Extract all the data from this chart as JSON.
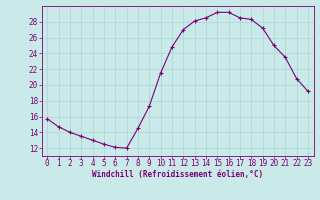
{
  "x": [
    0,
    1,
    2,
    3,
    4,
    5,
    6,
    7,
    8,
    9,
    10,
    11,
    12,
    13,
    14,
    15,
    16,
    17,
    18,
    19,
    20,
    21,
    22,
    23
  ],
  "y": [
    15.7,
    14.7,
    14.0,
    13.5,
    13.0,
    12.5,
    12.1,
    12.0,
    14.5,
    17.3,
    21.5,
    24.8,
    27.0,
    28.1,
    28.5,
    29.2,
    29.2,
    28.5,
    28.3,
    27.2,
    25.0,
    23.5,
    20.8,
    19.2
  ],
  "line_color": "#7B0077",
  "marker": "+",
  "marker_size": 3.5,
  "marker_lw": 0.8,
  "bg_color": "#caeaea",
  "grid_color": "#b0d8d8",
  "xlabel": "Windchill (Refroidissement éolien,°C)",
  "xlabel_color": "#7B0077",
  "tick_color": "#7B0077",
  "spine_color": "#7B0077",
  "ylim": [
    11,
    30
  ],
  "xlim": [
    -0.5,
    23.5
  ],
  "yticks": [
    12,
    14,
    16,
    18,
    20,
    22,
    24,
    26,
    28
  ],
  "xticks": [
    0,
    1,
    2,
    3,
    4,
    5,
    6,
    7,
    8,
    9,
    10,
    11,
    12,
    13,
    14,
    15,
    16,
    17,
    18,
    19,
    20,
    21,
    22,
    23
  ],
  "tick_fontsize": 5.5,
  "xlabel_fontsize": 5.5,
  "line_width": 0.8
}
